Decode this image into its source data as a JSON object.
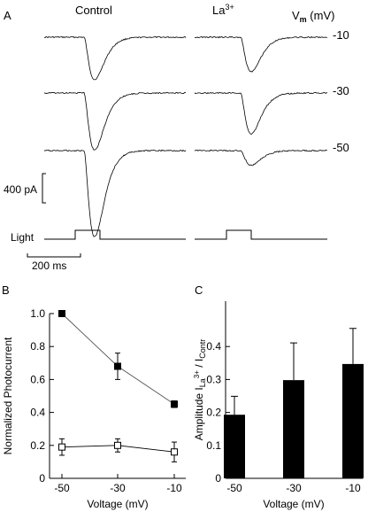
{
  "panel_a": {
    "letter": "A",
    "control_header": "Control",
    "la_header_base": "La",
    "la_header_sup": "3+",
    "vm_label_base": "V",
    "vm_label_sub": "m",
    "vm_label_unit": " (mV)",
    "row_labels": [
      "-10",
      "-30",
      "-50"
    ],
    "scale_current": "400 pA",
    "light_label": "Light",
    "scale_time": "200 ms",
    "traces": {
      "control_peak_pA": [
        580,
        780,
        1180
      ],
      "la_peak_pA": [
        470,
        560,
        200
      ]
    }
  },
  "chart_data": [
    {
      "panel": "B",
      "type": "scatter",
      "ylabel": "Normalized Photocurrent",
      "xlabel": "Voltage (mV)",
      "categories": [
        "-50",
        "-30",
        "-10"
      ],
      "x": [
        -50,
        -30,
        -10
      ],
      "ylim": [
        0,
        1.0
      ],
      "yticks": [
        "0",
        "0.2",
        "0.4",
        "0.6",
        "0.8",
        "1.0"
      ],
      "series": [
        {
          "marker": "filled-square",
          "values": [
            1.0,
            0.68,
            0.45
          ],
          "errors": [
            0,
            0.08,
            0.02
          ]
        },
        {
          "marker": "open-square",
          "values": [
            0.19,
            0.2,
            0.16
          ],
          "errors": [
            0.05,
            0.04,
            0.06
          ]
        }
      ]
    },
    {
      "panel": "C",
      "type": "bar",
      "ylabel_base": "Amplitude I",
      "ylabel_sub1": "La",
      "ylabel_sup": "3+",
      "ylabel_mid": " / I",
      "ylabel_sub2": "Contr",
      "xlabel": "Voltage (mV)",
      "categories": [
        "-50",
        "-30",
        "-10"
      ],
      "values": [
        0.193,
        0.298,
        0.347
      ],
      "errors": [
        0.056,
        0.113,
        0.108
      ],
      "ylim": [
        0,
        0.45
      ],
      "yticks": [
        "0",
        "0.1",
        "0.2",
        "0.3",
        "0.4"
      ]
    }
  ]
}
